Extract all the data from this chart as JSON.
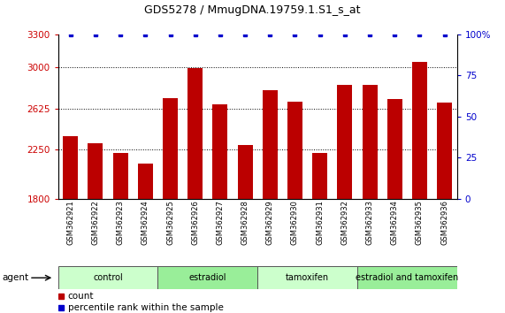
{
  "title": "GDS5278 / MmugDNA.19759.1.S1_s_at",
  "samples": [
    "GSM362921",
    "GSM362922",
    "GSM362923",
    "GSM362924",
    "GSM362925",
    "GSM362926",
    "GSM362927",
    "GSM362928",
    "GSM362929",
    "GSM362930",
    "GSM362931",
    "GSM362932",
    "GSM362933",
    "GSM362934",
    "GSM362935",
    "GSM362936"
  ],
  "bar_values": [
    2370,
    2310,
    2215,
    2120,
    2720,
    2990,
    2660,
    2290,
    2790,
    2690,
    2215,
    2840,
    2840,
    2710,
    3050,
    2680
  ],
  "percentile_values": [
    100,
    100,
    100,
    100,
    100,
    100,
    100,
    100,
    100,
    100,
    100,
    100,
    100,
    100,
    100,
    100
  ],
  "bar_color": "#bb0000",
  "percentile_color": "#0000cc",
  "ylim_left": [
    1800,
    3300
  ],
  "ylim_right": [
    0,
    100
  ],
  "yticks_left": [
    1800,
    2250,
    2625,
    3000,
    3300
  ],
  "yticks_right": [
    0,
    25,
    50,
    75,
    100
  ],
  "grid_values": [
    2250,
    2625,
    3000
  ],
  "groups": [
    {
      "label": "control",
      "start": 0,
      "end": 3,
      "color": "#ccffcc"
    },
    {
      "label": "estradiol",
      "start": 4,
      "end": 7,
      "color": "#99ee99"
    },
    {
      "label": "tamoxifen",
      "start": 8,
      "end": 11,
      "color": "#ccffcc"
    },
    {
      "label": "estradiol and tamoxifen",
      "start": 12,
      "end": 15,
      "color": "#99ee99"
    }
  ],
  "agent_label": "agent",
  "legend_count_label": "count",
  "legend_percentile_label": "percentile rank within the sample",
  "tick_color_left": "#cc0000",
  "tick_color_right": "#0000cc"
}
